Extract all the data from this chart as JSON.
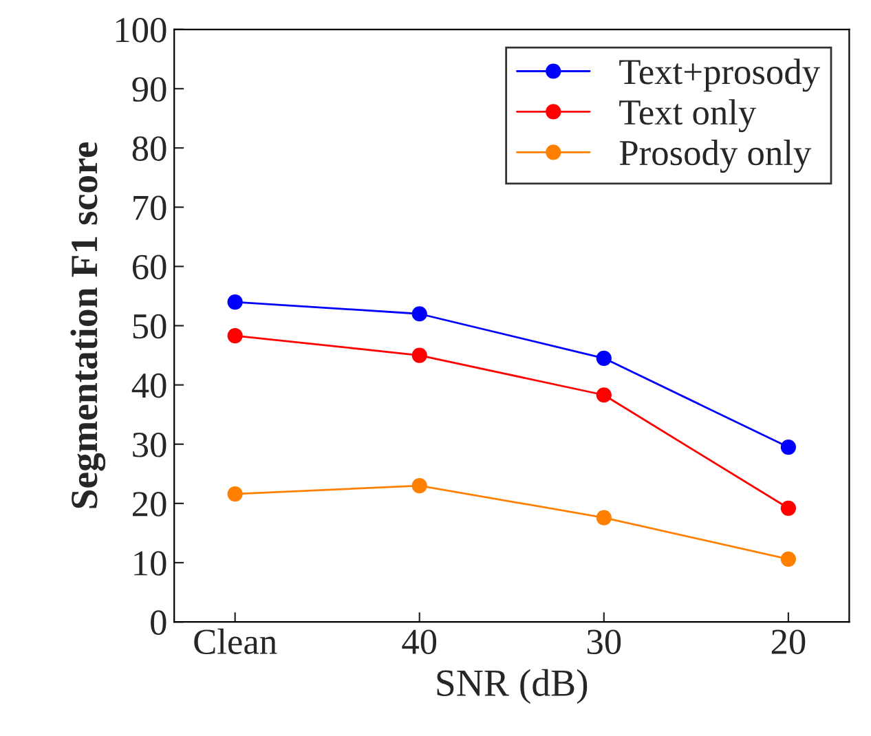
{
  "chart_data": {
    "type": "line",
    "xlabel": "SNR (dB)",
    "ylabel": "Segmentation F1 score",
    "categories": [
      "Clean",
      "40",
      "30",
      "20"
    ],
    "series": [
      {
        "name": "Text+prosody",
        "color": "#0000ff",
        "values": [
          54,
          52,
          44.5,
          29.5
        ]
      },
      {
        "name": "Text only",
        "color": "#ff0000",
        "values": [
          48.3,
          45,
          38.3,
          19.2
        ]
      },
      {
        "name": "Prosody only",
        "color": "#ff8000",
        "values": [
          21.6,
          23,
          17.6,
          10.6
        ]
      }
    ],
    "ylim": [
      0,
      100
    ],
    "yticks": [
      0,
      10,
      20,
      30,
      40,
      50,
      60,
      70,
      80,
      90,
      100
    ],
    "marker": "circle",
    "line_style": "solid",
    "legend": "top right",
    "grid": false
  }
}
